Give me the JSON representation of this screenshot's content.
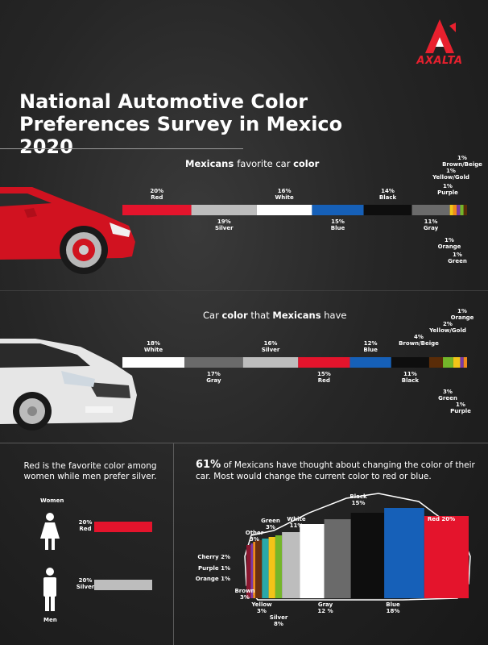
{
  "brand": {
    "name": "AXALTA",
    "color": "#e8202e"
  },
  "title": {
    "line1": "National Automotive Color",
    "line2": "Preferences Survey in Mexico 2020"
  },
  "colors": {
    "Red": "#e4142c",
    "Silver": "#bdbdbd",
    "White": "#ffffff",
    "Blue": "#1660b8",
    "Black": "#0e0e0e",
    "Gray": "#6a6a6a",
    "Yellow/Gold": "#f2c418",
    "Purple": "#7a3aa8",
    "Orange": "#f08a1c",
    "Green": "#74b62a",
    "Brown/Beige": "#5a2c08",
    "Cherry": "#8a1830",
    "Other": "#2aa8a8",
    "Brown": "#6a3010",
    "Yellow": "#f2c418"
  },
  "chart_data": [
    {
      "type": "bar",
      "title_parts": [
        "Mexicans ",
        "favorite",
        " car ",
        "color"
      ],
      "title_bold": [
        true,
        false,
        false,
        true
      ],
      "series": [
        {
          "name": "Red",
          "value": 20,
          "label": "20%",
          "text": "Red"
        },
        {
          "name": "Silver",
          "value": 19,
          "label": "19%",
          "text": "Silver"
        },
        {
          "name": "White",
          "value": 16,
          "label": "16%",
          "text": "White"
        },
        {
          "name": "Blue",
          "value": 15,
          "label": "15%",
          "text": "Blue"
        },
        {
          "name": "Black",
          "value": 14,
          "label": "14%",
          "text": "Black"
        },
        {
          "name": "Gray",
          "value": 11,
          "label": "11%",
          "text": "Gray"
        },
        {
          "name": "Yellow/Gold",
          "value": 1,
          "label": "1%",
          "text": "Yellow/Gold"
        },
        {
          "name": "Orange",
          "value": 1,
          "label": "1%",
          "text": "Orange"
        },
        {
          "name": "Purple",
          "value": 1,
          "label": "1%",
          "text": "Purple"
        },
        {
          "name": "Green",
          "value": 1,
          "label": "1%",
          "text": "Green"
        },
        {
          "name": "Brown/Beige",
          "value": 1,
          "label": "1%",
          "text": "Brown/Beige"
        }
      ]
    },
    {
      "type": "bar",
      "title_parts": [
        "Car ",
        "color",
        " that ",
        "Mexicans",
        " have"
      ],
      "title_bold": [
        false,
        true,
        false,
        true,
        false
      ],
      "series": [
        {
          "name": "White",
          "value": 18,
          "label": "18%",
          "text": "White"
        },
        {
          "name": "Gray",
          "value": 17,
          "label": "17%",
          "text": "Gray"
        },
        {
          "name": "Silver",
          "value": 16,
          "label": "16%",
          "text": "Silver"
        },
        {
          "name": "Red",
          "value": 15,
          "label": "15%",
          "text": "Red"
        },
        {
          "name": "Blue",
          "value": 12,
          "label": "12%",
          "text": "Blue"
        },
        {
          "name": "Black",
          "value": 11,
          "label": "11%",
          "text": "Black"
        },
        {
          "name": "Brown/Beige",
          "value": 4,
          "label": "4%",
          "text": "Brown/Beige"
        },
        {
          "name": "Green",
          "value": 3,
          "label": "3%",
          "text": "Green"
        },
        {
          "name": "Yellow/Gold",
          "value": 2,
          "label": "2%",
          "text": "Yellow/Gold"
        },
        {
          "name": "Purple",
          "value": 1,
          "label": "1%",
          "text": "Purple"
        },
        {
          "name": "Orange",
          "value": 1,
          "label": "1%",
          "text": "Orange"
        }
      ]
    },
    {
      "type": "bar",
      "series": [
        {
          "name": "Women",
          "value": 20,
          "label": "20%",
          "text": "Red"
        },
        {
          "name": "Men",
          "value": 20,
          "label": "20%",
          "text": "Silver"
        }
      ]
    },
    {
      "type": "bar",
      "series": [
        {
          "name": "Cherry",
          "value": 2,
          "label": "Cherry 2%"
        },
        {
          "name": "Purple",
          "value": 1,
          "label": "Purple 1%"
        },
        {
          "name": "Orange",
          "value": 1,
          "label": "Orange 1%"
        },
        {
          "name": "Brown",
          "value": 3,
          "label": "3%"
        },
        {
          "name": "Other",
          "value": 3,
          "label": "3%"
        },
        {
          "name": "Yellow",
          "value": 3,
          "label": "3%"
        },
        {
          "name": "Green",
          "value": 3,
          "label": "3%"
        },
        {
          "name": "Silver",
          "value": 8,
          "label": "8%"
        },
        {
          "name": "White",
          "value": 11,
          "label": "11%"
        },
        {
          "name": "Gray",
          "value": 12,
          "label": "12 %"
        },
        {
          "name": "Black",
          "value": 15,
          "label": "15%"
        },
        {
          "name": "Blue",
          "value": 18,
          "label": "18%"
        },
        {
          "name": "Red",
          "value": 20,
          "label": "Red 20%"
        }
      ]
    }
  ],
  "gender": {
    "title": "Red is the favorite color among women while men prefer silver.",
    "women_label": "Women",
    "men_label": "Men"
  },
  "change": {
    "highlight": "61%",
    "text": " of Mexicans have thought about changing the color of their car. Most would change the current color to red or blue."
  }
}
